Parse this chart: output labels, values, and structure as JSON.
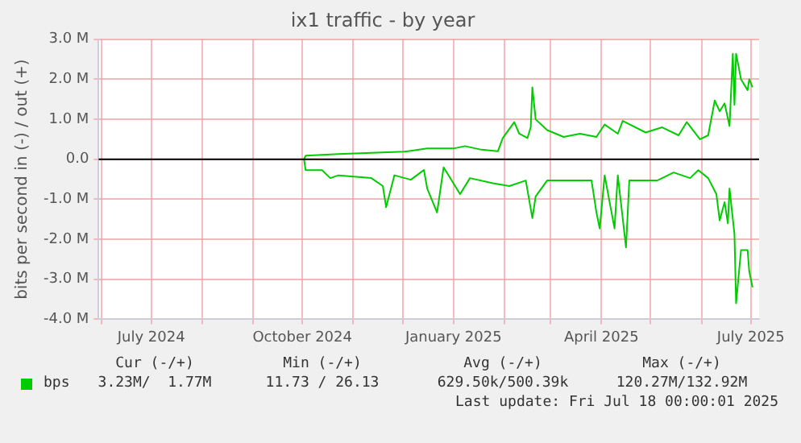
{
  "chart_data": {
    "type": "line",
    "title": "ix1 traffic - by year",
    "ylabel": "bits per second in (-) / out (+)",
    "xlim": [
      "2024-05-30",
      "2025-07-06"
    ],
    "xticks": [
      {
        "value": "2024-06-01",
        "label": null
      },
      {
        "value": "2024-07-01",
        "label": "July 2024"
      },
      {
        "value": "2024-08-01",
        "label": null
      },
      {
        "value": "2024-09-01",
        "label": null
      },
      {
        "value": "2024-10-01",
        "label": "October 2024"
      },
      {
        "value": "2024-11-01",
        "label": null
      },
      {
        "value": "2024-12-01",
        "label": null
      },
      {
        "value": "2025-01-01",
        "label": "January 2025"
      },
      {
        "value": "2025-02-01",
        "label": null
      },
      {
        "value": "2025-03-01",
        "label": null
      },
      {
        "value": "2025-04-01",
        "label": "April 2025"
      },
      {
        "value": "2025-05-01",
        "label": null
      },
      {
        "value": "2025-06-01",
        "label": null
      },
      {
        "value": "2025-07-01",
        "label": "July 2025"
      }
    ],
    "ylim": [
      -4,
      3
    ],
    "yticks": [
      {
        "value": -4,
        "label": "-4.0 M"
      },
      {
        "value": -3,
        "label": "-3.0 M"
      },
      {
        "value": -2,
        "label": "-2.0 M"
      },
      {
        "value": -1,
        "label": "-1.0 M"
      },
      {
        "value": 0,
        "label": "0.0"
      },
      {
        "value": 1,
        "label": "1.0 M"
      },
      {
        "value": 2,
        "label": "2.0 M"
      },
      {
        "value": 3,
        "label": "3.0 M"
      }
    ],
    "series": [
      {
        "name": "bps",
        "color": "#00cc00",
        "x": [
          "2024-10-02",
          "2024-10-03",
          "2024-10-23",
          "2024-11-12",
          "2024-12-02",
          "2024-12-16",
          "2025-01-01",
          "2025-01-08",
          "2025-01-18",
          "2025-01-28",
          "2025-01-31",
          "2025-02-07",
          "2025-02-10",
          "2025-02-15",
          "2025-02-17",
          "2025-02-18",
          "2025-02-20",
          "2025-02-27",
          "2025-03-09",
          "2025-03-19",
          "2025-03-29",
          "2025-04-03",
          "2025-04-11",
          "2025-04-14",
          "2025-04-28",
          "2025-05-08",
          "2025-05-18",
          "2025-05-23",
          "2025-05-31",
          "2025-06-05",
          "2025-06-09",
          "2025-06-12",
          "2025-06-15",
          "2025-06-18",
          "2025-06-20",
          "2025-06-21",
          "2025-06-22",
          "2025-06-25",
          "2025-06-29",
          "2025-06-30",
          "2025-07-02"
        ],
        "values": [
          0,
          0.09,
          0.13,
          0.16,
          0.19,
          0.27,
          0.27,
          0.33,
          0.24,
          0.2,
          0.53,
          0.93,
          0.64,
          0.53,
          0.8,
          1.8,
          1.0,
          0.73,
          0.56,
          0.64,
          0.56,
          0.87,
          0.64,
          0.96,
          0.67,
          0.8,
          0.6,
          0.93,
          0.5,
          0.6,
          1.47,
          1.2,
          1.4,
          0.83,
          2.64,
          1.36,
          2.64,
          2.0,
          1.73,
          2.0,
          1.8
        ]
      },
      {
        "color": "#00cc00",
        "x": [
          "2024-10-02",
          "2024-10-03",
          "2024-10-13",
          "2024-10-18",
          "2024-10-23",
          "2024-11-12",
          "2024-11-19",
          "2024-11-21",
          "2024-11-26",
          "2024-12-06",
          "2024-12-14",
          "2024-12-16",
          "2024-12-22",
          "2024-12-26",
          "2025-01-05",
          "2025-01-11",
          "2025-01-25",
          "2025-02-04",
          "2025-02-14",
          "2025-02-18",
          "2025-02-20",
          "2025-02-27",
          "2025-03-12",
          "2025-03-26",
          "2025-03-29",
          "2025-03-31",
          "2025-04-03",
          "2025-04-09",
          "2025-04-11",
          "2025-04-16",
          "2025-04-18",
          "2025-05-05",
          "2025-05-15",
          "2025-05-25",
          "2025-05-30",
          "2025-06-05",
          "2025-06-10",
          "2025-06-12",
          "2025-06-15",
          "2025-06-17",
          "2025-06-18",
          "2025-06-21",
          "2025-06-22",
          "2025-06-25",
          "2025-06-29",
          "2025-06-30",
          "2025-07-02"
        ],
        "values": [
          0,
          -0.27,
          -0.27,
          -0.47,
          -0.4,
          -0.47,
          -0.67,
          -1.2,
          -0.4,
          -0.51,
          -0.27,
          -0.73,
          -1.33,
          -0.2,
          -0.87,
          -0.47,
          -0.6,
          -0.67,
          -0.53,
          -1.47,
          -0.93,
          -0.53,
          -0.53,
          -0.53,
          -1.33,
          -1.73,
          -0.4,
          -1.73,
          -0.4,
          -2.2,
          -0.53,
          -0.53,
          -0.33,
          -0.47,
          -0.27,
          -0.47,
          -0.87,
          -1.53,
          -1.07,
          -1.6,
          -0.73,
          -1.87,
          -3.6,
          -2.27,
          -2.27,
          -2.8,
          -3.2
        ]
      }
    ],
    "ref_lines": [
      {
        "axis": "y",
        "value": 0,
        "color": "#000000"
      }
    ],
    "grid": true,
    "legend": "bottom",
    "marker": "none",
    "line_style": "solid",
    "annotations": [
      "Cur (-/+)",
      "Min (-/+)",
      "Avg (-/+)",
      "Max (-/+)",
      "3.23M/  1.77M",
      "11.73 / 26.13",
      "629.50k/500.39k",
      "120.27M/132.92M",
      "Last update: Fri Jul 18 00:00:01 2025"
    ]
  }
}
